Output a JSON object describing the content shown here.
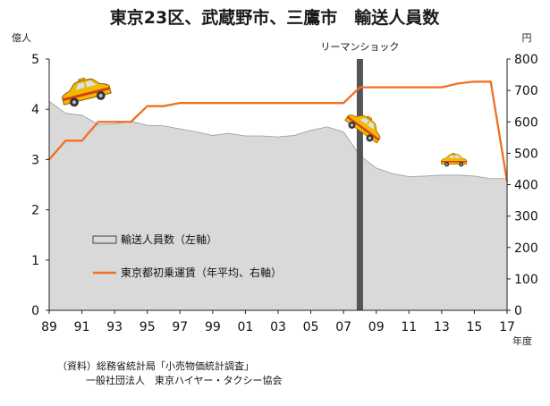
{
  "chart_data": {
    "type": "area+line",
    "title": "東京23区、武蔵野市、三鷹市　輸送人員数",
    "left_unit": "億人",
    "right_unit": "円",
    "xlabel": "年度",
    "x_tick_labels": [
      "89",
      "91",
      "93",
      "95",
      "97",
      "99",
      "01",
      "03",
      "05",
      "07",
      "09",
      "11",
      "13",
      "15",
      "17"
    ],
    "ylim_left": [
      0,
      5
    ],
    "ylim_right": [
      0,
      800
    ],
    "y_ticks_left": [
      "0",
      "1",
      "2",
      "3",
      "4",
      "5"
    ],
    "y_ticks_right": [
      "0",
      "100",
      "200",
      "300",
      "400",
      "500",
      "600",
      "700",
      "800"
    ],
    "x": [
      1989,
      1990,
      1991,
      1992,
      1993,
      1994,
      1995,
      1996,
      1997,
      1998,
      1999,
      2000,
      2001,
      2002,
      2003,
      2004,
      2005,
      2006,
      2007,
      2008,
      2009,
      2010,
      2011,
      2012,
      2013,
      2014,
      2015,
      2016,
      2017
    ],
    "series": [
      {
        "name": "輸送人員数（左軸）",
        "type": "area",
        "color": "#d9d9d9",
        "values": [
          4.16,
          3.92,
          3.88,
          3.7,
          3.71,
          3.76,
          3.68,
          3.67,
          3.61,
          3.55,
          3.48,
          3.52,
          3.47,
          3.47,
          3.45,
          3.48,
          3.58,
          3.65,
          3.55,
          3.08,
          2.83,
          2.72,
          2.66,
          2.67,
          2.69,
          2.69,
          2.67,
          2.62,
          2.62
        ]
      },
      {
        "name": "東京都初乗運賃（年平均、右軸）",
        "type": "line",
        "color": "#f07020",
        "values": [
          480,
          540,
          540,
          600,
          600,
          600,
          650,
          650,
          660,
          660,
          660,
          660,
          660,
          660,
          660,
          660,
          660,
          660,
          660,
          710,
          710,
          710,
          710,
          710,
          710,
          722,
          728,
          728,
          410
        ]
      }
    ],
    "annotations": [
      {
        "text": "リーマンショック",
        "x": 2008
      }
    ],
    "legend": "inside-left"
  },
  "source_lines": [
    "（資料）総務省統計局「小売物価統計調査」",
    "一般社団法人　東京ハイヤー・タクシー協会"
  ],
  "icons": [
    "taxi-icon"
  ],
  "colors": {
    "bar": "#555555",
    "taxi_body": "#f5b800",
    "taxi_stripe": "#d64016"
  }
}
